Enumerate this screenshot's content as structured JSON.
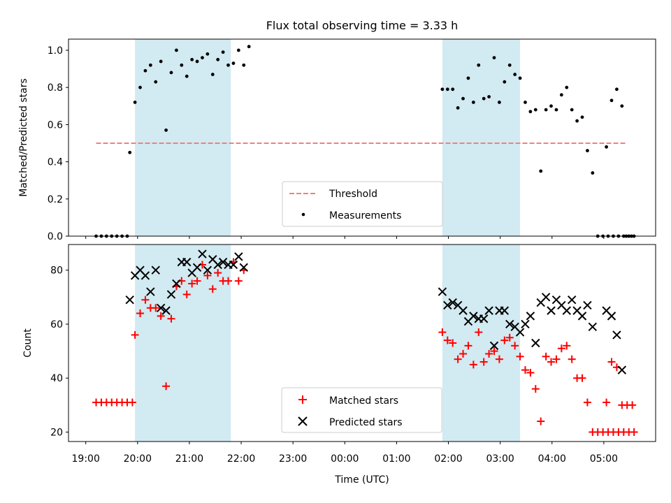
{
  "colors": {
    "band": "#add8e6",
    "threshold": "#f08080",
    "matched": "#ff0000",
    "predicted": "#000000",
    "measurement": "#000000"
  },
  "chart_data": [
    {
      "type": "scatter",
      "title": "Flux total observing time = 3.33 h",
      "xlabel": "",
      "ylabel": "Matched/Predicted stars",
      "xlim": [
        "18:40",
        "06:00"
      ],
      "ylim": [
        0,
        1.06
      ],
      "yticks": [
        "0.0",
        "0.2",
        "0.4",
        "0.6",
        "0.8",
        "1.0"
      ],
      "shaded_spans": [
        [
          "19:57",
          "21:48"
        ],
        [
          "01:53",
          "03:23"
        ]
      ],
      "threshold": {
        "name": "Threshold",
        "value": 0.5,
        "x_start": "19:12",
        "x_end": "05:27"
      },
      "legend": {
        "placement": "lower center",
        "entries": [
          "Threshold",
          "Measurements"
        ]
      },
      "series": [
        {
          "name": "Measurements",
          "points": [
            [
              "19:12",
              0
            ],
            [
              "19:18",
              0
            ],
            [
              "19:24",
              0
            ],
            [
              "19:30",
              0
            ],
            [
              "19:36",
              0
            ],
            [
              "19:42",
              0
            ],
            [
              "19:48",
              0
            ],
            [
              "19:51",
              0.45
            ],
            [
              "19:57",
              0.72
            ],
            [
              "20:03",
              0.8
            ],
            [
              "20:09",
              0.89
            ],
            [
              "20:15",
              0.92
            ],
            [
              "20:21",
              0.83
            ],
            [
              "20:27",
              0.94
            ],
            [
              "20:33",
              0.57
            ],
            [
              "20:39",
              0.88
            ],
            [
              "20:45",
              1.0
            ],
            [
              "20:51",
              0.92
            ],
            [
              "20:57",
              0.86
            ],
            [
              "21:03",
              0.95
            ],
            [
              "21:09",
              0.94
            ],
            [
              "21:15",
              0.96
            ],
            [
              "21:21",
              0.98
            ],
            [
              "21:27",
              0.87
            ],
            [
              "21:33",
              0.95
            ],
            [
              "21:39",
              0.99
            ],
            [
              "21:45",
              0.92
            ],
            [
              "21:51",
              0.93
            ],
            [
              "21:57",
              1.0
            ],
            [
              "22:03",
              0.92
            ],
            [
              "22:09",
              1.02
            ],
            [
              "01:53",
              0.79
            ],
            [
              "01:59",
              0.79
            ],
            [
              "02:05",
              0.79
            ],
            [
              "02:11",
              0.69
            ],
            [
              "02:17",
              0.74
            ],
            [
              "02:23",
              0.85
            ],
            [
              "02:29",
              0.72
            ],
            [
              "02:35",
              0.92
            ],
            [
              "02:41",
              0.74
            ],
            [
              "02:47",
              0.75
            ],
            [
              "02:53",
              0.96
            ],
            [
              "02:59",
              0.72
            ],
            [
              "03:05",
              0.83
            ],
            [
              "03:11",
              0.92
            ],
            [
              "03:17",
              0.87
            ],
            [
              "03:23",
              0.85
            ],
            [
              "03:29",
              0.72
            ],
            [
              "03:35",
              0.67
            ],
            [
              "03:41",
              0.68
            ],
            [
              "03:47",
              0.35
            ],
            [
              "03:53",
              0.68
            ],
            [
              "03:59",
              0.7
            ],
            [
              "04:05",
              0.68
            ],
            [
              "04:11",
              0.76
            ],
            [
              "04:17",
              0.8
            ],
            [
              "04:23",
              0.68
            ],
            [
              "04:29",
              0.62
            ],
            [
              "04:35",
              0.64
            ],
            [
              "04:41",
              0.46
            ],
            [
              "04:47",
              0.34
            ],
            [
              "04:53",
              0
            ],
            [
              "04:59",
              0
            ],
            [
              "05:05",
              0
            ],
            [
              "05:11",
              0
            ],
            [
              "05:17",
              0
            ],
            [
              "05:23",
              0
            ],
            [
              "05:29",
              0
            ],
            [
              "05:35",
              0
            ],
            [
              "05:03",
              0.48
            ],
            [
              "05:09",
              0.73
            ],
            [
              "05:15",
              0.79
            ],
            [
              "05:21",
              0.7
            ],
            [
              "05:26",
              0
            ],
            [
              "05:32",
              0
            ]
          ]
        }
      ]
    },
    {
      "type": "scatter",
      "title": "",
      "xlabel": "Time (UTC)",
      "ylabel": "Count",
      "xlim": [
        "18:40",
        "06:00"
      ],
      "ylim": [
        16.5,
        89.5
      ],
      "yticks": [
        "20",
        "40",
        "60",
        "80"
      ],
      "xticks": [
        "19:00",
        "20:00",
        "21:00",
        "22:00",
        "23:00",
        "00:00",
        "01:00",
        "02:00",
        "03:00",
        "04:00",
        "05:00"
      ],
      "shaded_spans": [
        [
          "19:57",
          "21:48"
        ],
        [
          "01:53",
          "03:23"
        ]
      ],
      "legend": {
        "placement": "lower center",
        "entries": [
          "Matched stars",
          "Predicted stars"
        ]
      },
      "series": [
        {
          "name": "Matched stars",
          "marker": "plus",
          "points": [
            [
              "19:12",
              31
            ],
            [
              "19:18",
              31
            ],
            [
              "19:24",
              31
            ],
            [
              "19:30",
              31
            ],
            [
              "19:36",
              31
            ],
            [
              "19:42",
              31
            ],
            [
              "19:48",
              31
            ],
            [
              "19:54",
              31
            ],
            [
              "19:57",
              56
            ],
            [
              "20:03",
              64
            ],
            [
              "20:09",
              69
            ],
            [
              "20:15",
              66
            ],
            [
              "20:21",
              66
            ],
            [
              "20:27",
              63
            ],
            [
              "20:33",
              37
            ],
            [
              "20:39",
              62
            ],
            [
              "20:45",
              74
            ],
            [
              "20:51",
              76
            ],
            [
              "20:57",
              71
            ],
            [
              "21:03",
              75
            ],
            [
              "21:09",
              76
            ],
            [
              "21:15",
              82
            ],
            [
              "21:21",
              78
            ],
            [
              "21:27",
              73
            ],
            [
              "21:33",
              79
            ],
            [
              "21:39",
              76
            ],
            [
              "21:45",
              76
            ],
            [
              "21:51",
              83
            ],
            [
              "21:57",
              76
            ],
            [
              "22:03",
              80
            ],
            [
              "01:53",
              57
            ],
            [
              "01:59",
              54
            ],
            [
              "02:05",
              53
            ],
            [
              "02:11",
              47
            ],
            [
              "02:17",
              49
            ],
            [
              "02:23",
              52
            ],
            [
              "02:29",
              45
            ],
            [
              "02:35",
              57
            ],
            [
              "02:41",
              46
            ],
            [
              "02:47",
              49
            ],
            [
              "02:53",
              50
            ],
            [
              "02:59",
              47
            ],
            [
              "03:05",
              54
            ],
            [
              "03:11",
              55
            ],
            [
              "03:17",
              52
            ],
            [
              "03:23",
              48
            ],
            [
              "03:29",
              43
            ],
            [
              "03:35",
              42
            ],
            [
              "03:41",
              36
            ],
            [
              "03:47",
              24
            ],
            [
              "03:53",
              48
            ],
            [
              "03:59",
              46
            ],
            [
              "04:05",
              47
            ],
            [
              "04:11",
              51
            ],
            [
              "04:17",
              52
            ],
            [
              "04:23",
              47
            ],
            [
              "04:29",
              40
            ],
            [
              "04:35",
              40
            ],
            [
              "04:41",
              31
            ],
            [
              "04:47",
              20
            ],
            [
              "04:53",
              20
            ],
            [
              "04:59",
              20
            ],
            [
              "05:05",
              20
            ],
            [
              "05:11",
              20
            ],
            [
              "05:17",
              20
            ],
            [
              "05:23",
              20
            ],
            [
              "05:29",
              20
            ],
            [
              "05:35",
              20
            ],
            [
              "05:03",
              31
            ],
            [
              "05:09",
              46
            ],
            [
              "05:15",
              44
            ],
            [
              "05:21",
              30
            ],
            [
              "05:27",
              30
            ],
            [
              "05:33",
              30
            ]
          ]
        },
        {
          "name": "Predicted stars",
          "marker": "x",
          "points": [
            [
              "19:51",
              69
            ],
            [
              "19:57",
              78
            ],
            [
              "20:03",
              80
            ],
            [
              "20:09",
              78
            ],
            [
              "20:15",
              72
            ],
            [
              "20:21",
              80
            ],
            [
              "20:27",
              66
            ],
            [
              "20:33",
              65
            ],
            [
              "20:39",
              71
            ],
            [
              "20:45",
              75
            ],
            [
              "20:51",
              83
            ],
            [
              "20:57",
              83
            ],
            [
              "21:03",
              79
            ],
            [
              "21:09",
              81
            ],
            [
              "21:15",
              86
            ],
            [
              "21:21",
              80
            ],
            [
              "21:27",
              84
            ],
            [
              "21:33",
              82
            ],
            [
              "21:39",
              83
            ],
            [
              "21:45",
              82
            ],
            [
              "21:51",
              82
            ],
            [
              "21:57",
              85
            ],
            [
              "22:03",
              81
            ],
            [
              "01:53",
              72
            ],
            [
              "01:59",
              67
            ],
            [
              "02:05",
              68
            ],
            [
              "02:11",
              67
            ],
            [
              "02:17",
              65
            ],
            [
              "02:23",
              61
            ],
            [
              "02:29",
              63
            ],
            [
              "02:35",
              62
            ],
            [
              "02:41",
              62
            ],
            [
              "02:47",
              65
            ],
            [
              "02:53",
              52
            ],
            [
              "02:59",
              65
            ],
            [
              "03:05",
              65
            ],
            [
              "03:11",
              60
            ],
            [
              "03:17",
              59
            ],
            [
              "03:23",
              57
            ],
            [
              "03:29",
              60
            ],
            [
              "03:35",
              63
            ],
            [
              "03:41",
              53
            ],
            [
              "03:47",
              68
            ],
            [
              "03:53",
              70
            ],
            [
              "03:59",
              65
            ],
            [
              "04:05",
              69
            ],
            [
              "04:11",
              67
            ],
            [
              "04:17",
              65
            ],
            [
              "04:23",
              69
            ],
            [
              "04:29",
              65
            ],
            [
              "04:35",
              63
            ],
            [
              "04:41",
              67
            ],
            [
              "04:47",
              59
            ],
            [
              "05:03",
              65
            ],
            [
              "05:09",
              63
            ],
            [
              "05:15",
              56
            ],
            [
              "05:21",
              43
            ]
          ]
        }
      ]
    }
  ]
}
